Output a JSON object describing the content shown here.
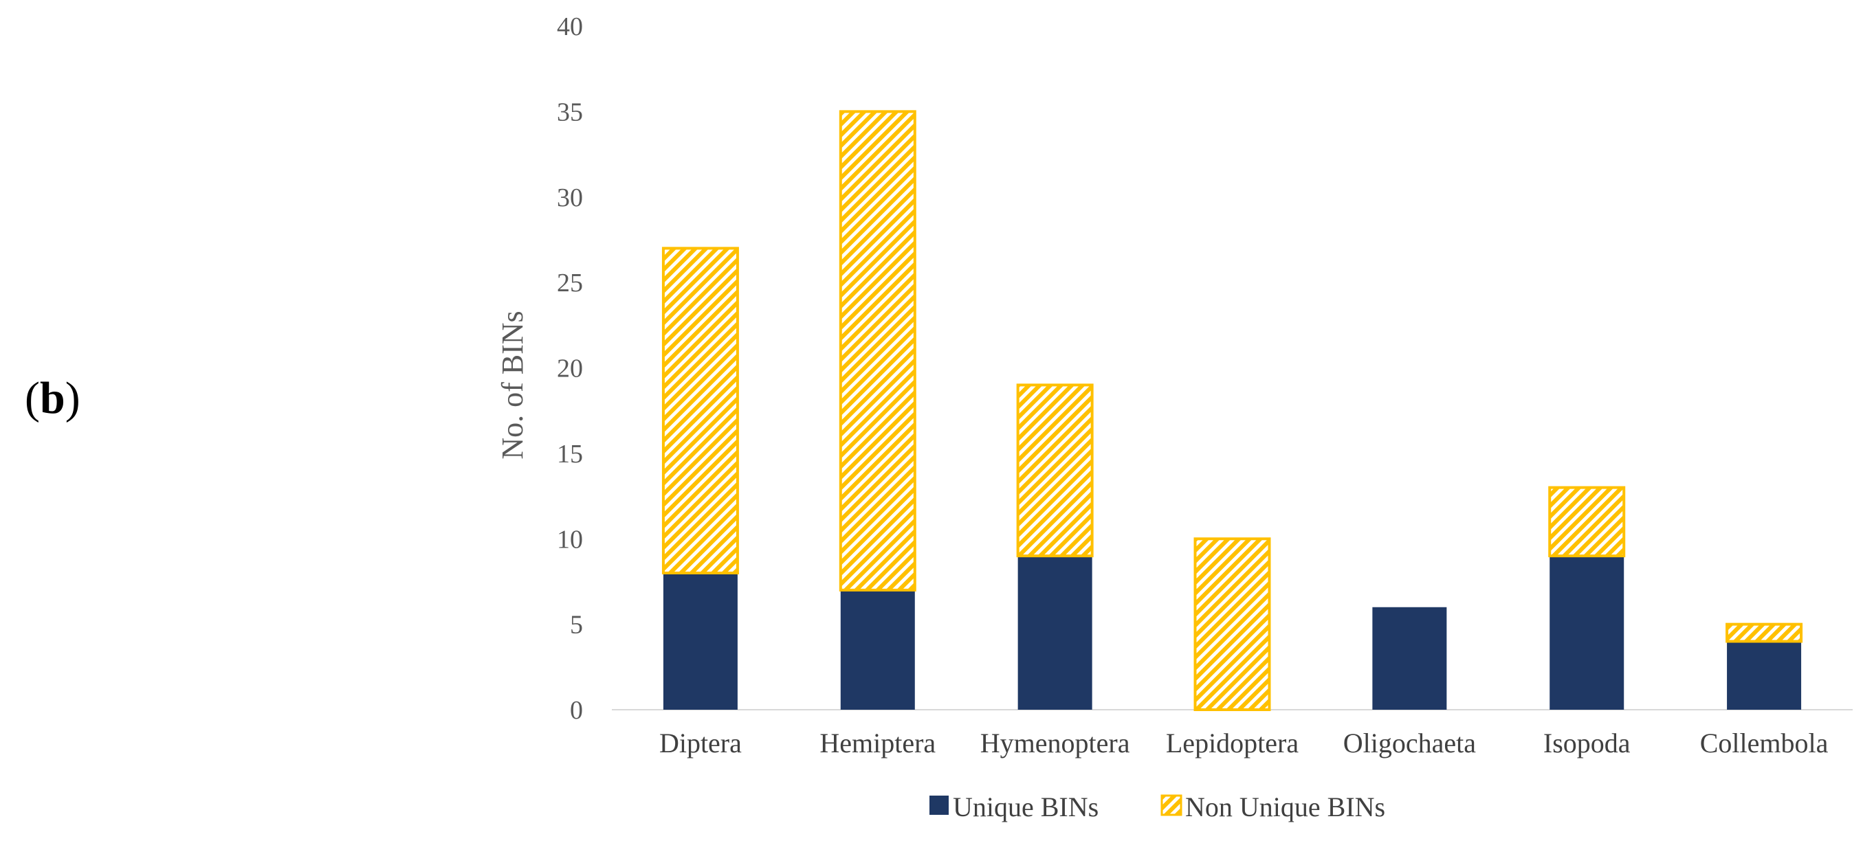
{
  "panel_label": {
    "open": "(",
    "letter": "b",
    "close": ")"
  },
  "chart_data": {
    "type": "bar",
    "stacked": true,
    "categories": [
      "Diptera",
      "Hemiptera",
      "Hymenoptera",
      "Lepidoptera",
      "Oligochaeta",
      "Isopoda",
      "Collembola"
    ],
    "series": [
      {
        "name": "Unique BINs",
        "values": [
          8,
          7,
          9,
          0,
          6,
          9,
          4
        ],
        "color": "#1f3864",
        "pattern": "solid"
      },
      {
        "name": "Non Unique BINs",
        "values": [
          19,
          28,
          10,
          10,
          0,
          4,
          1
        ],
        "color": "#ffc000",
        "pattern": "diagonal-hatch"
      }
    ],
    "ylabel": "No. of BINs",
    "xlabel": "",
    "ylim": [
      0,
      40
    ],
    "yticks": [
      0,
      5,
      10,
      15,
      20,
      25,
      30,
      35,
      40
    ],
    "grid": false,
    "legend_position": "bottom"
  }
}
